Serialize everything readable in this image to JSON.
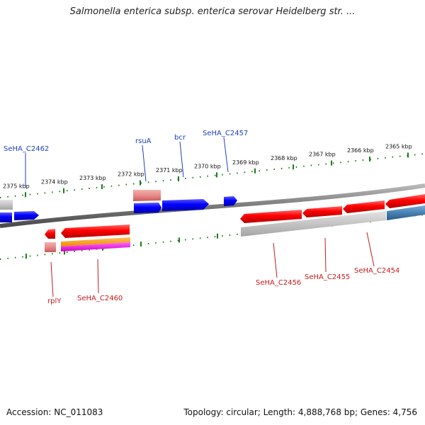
{
  "title": "Salmonella enterica subsp. enterica serovar Heidelberg str. ...",
  "footer": {
    "accession": "Accession: NC_011083",
    "summary": "Topology: circular; Length: 4,888,768 bp; Genes: 4,756"
  },
  "scale_ticks": [
    "2375 kbp",
    "2374 kbp",
    "2373 kbp",
    "2372 kbp",
    "2371 kbp",
    "2370 kbp",
    "2369 kbp",
    "2368 kbp",
    "2367 kbp",
    "2366 kbp",
    "2365 kbp"
  ],
  "forward_gene_labels": [
    "SeHA_C2462",
    "rsuA",
    "bcr",
    "SeHA_C2457"
  ],
  "reverse_gene_labels": [
    "rplY",
    "SeHA_C2460",
    "SeHA_C2456",
    "SeHA_C2455",
    "SeHA_C2454"
  ],
  "colors": {
    "forward_label": "#1a3fc8",
    "reverse_label": "#c81a1a",
    "forward_gene": "#0000ff",
    "reverse_gene": "#ff0000",
    "tick_mark": "#1a7a1a",
    "backbone": "#888888"
  }
}
